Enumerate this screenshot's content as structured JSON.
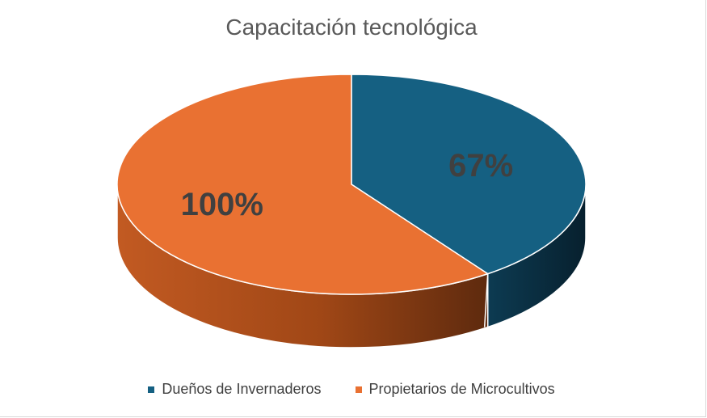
{
  "chart_data": {
    "type": "pie",
    "title": "Capacitación tecnológica",
    "categories": [
      "Dueños de Invernaderos",
      "Propietarios de Microcultivos"
    ],
    "values": [
      67,
      100
    ],
    "labels": [
      "67%",
      "100%"
    ],
    "colors": [
      "#156082",
      "#E97132"
    ],
    "legend": "bottom",
    "style": "3d-pie"
  }
}
